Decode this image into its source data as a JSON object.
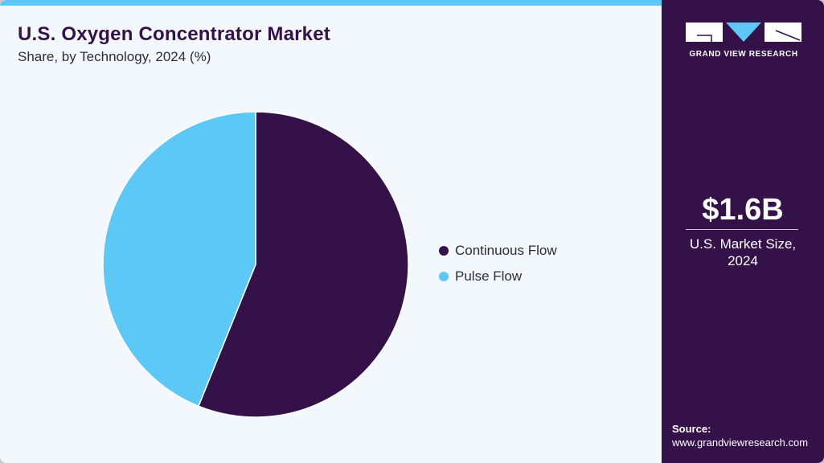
{
  "header": {
    "title": "U.S. Oxygen Concentrator Market",
    "subtitle": "Share, by Technology, 2024 (%)"
  },
  "colors": {
    "accent_top_bar": "#5bc8f5",
    "sidebar_bg": "#35114a",
    "continuous_flow": "#35114a",
    "pulse_flow": "#5bc8f5",
    "background": "#f2f8fc"
  },
  "legend": {
    "items": [
      {
        "label": "Continuous Flow",
        "color": "#35114a"
      },
      {
        "label": "Pulse Flow",
        "color": "#5bc8f5"
      }
    ]
  },
  "sidebar": {
    "logo_text": "GRAND VIEW RESEARCH",
    "kpi_value": "$1.6B",
    "kpi_label_line1": "U.S. Market Size,",
    "kpi_label_line2": "2024",
    "source_heading": "Source:",
    "source_url": "www.grandviewresearch.com"
  },
  "chart_data": {
    "type": "pie",
    "title": "U.S. Oxygen Concentrator Market",
    "subtitle": "Share, by Technology, 2024 (%)",
    "categories": [
      "Continuous Flow",
      "Pulse Flow"
    ],
    "values": [
      56.1,
      43.9
    ],
    "colors": [
      "#35114a",
      "#5bc8f5"
    ],
    "start_angle": "12 o'clock, clockwise",
    "legend_position": "right",
    "data_labels": false
  }
}
